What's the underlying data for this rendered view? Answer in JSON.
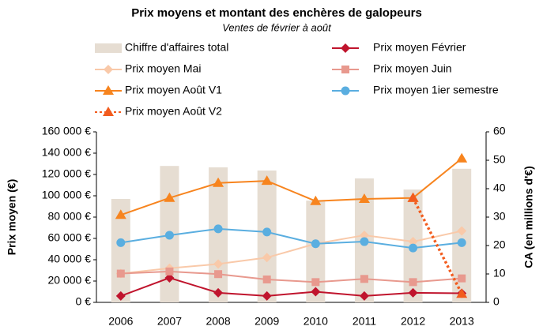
{
  "chart_data": {
    "type": "line",
    "title": "Prix moyens et montant des enchères de galopeurs",
    "subtitle": "Ventes de février à août",
    "y_label": "Prix moyen (€)",
    "y2_label": "CA (en millions d'€)",
    "categories": [
      "2006",
      "2007",
      "2008",
      "2009",
      "2010",
      "2011",
      "2012",
      "2013"
    ],
    "ylim": [
      0,
      160000
    ],
    "yticks": [
      {
        "value": 0,
        "label": "0 €"
      },
      {
        "value": 20000,
        "label": "20 000 €"
      },
      {
        "value": 40000,
        "label": "40 000 €"
      },
      {
        "value": 60000,
        "label": "60 000 €"
      },
      {
        "value": 80000,
        "label": "80 000 €"
      },
      {
        "value": 100000,
        "label": "100 000 €"
      },
      {
        "value": 120000,
        "label": "120 000 €"
      },
      {
        "value": 140000,
        "label": "140 000 €"
      },
      {
        "value": 160000,
        "label": "160 000 €"
      }
    ],
    "y2lim": [
      0,
      60
    ],
    "y2ticks": [
      0,
      10,
      20,
      30,
      40,
      50,
      60
    ],
    "series": [
      {
        "name": "Chiffre d'affaires total",
        "kind": "bar",
        "axis": "y2",
        "color": "#e6ddd2",
        "values": [
          36.4,
          48,
          47.5,
          46.4,
          35.8,
          43.6,
          39.7,
          47
        ]
      },
      {
        "name": "Prix moyen Février",
        "marker": "diamond",
        "color": "#c0142d",
        "values": [
          6000,
          23000,
          9000,
          6000,
          10000,
          6000,
          9000,
          8500
        ]
      },
      {
        "name": "Prix moyen Mai",
        "marker": "diamond",
        "color": "#f9c9a9",
        "values": [
          27000,
          32000,
          36000,
          42000,
          55000,
          63000,
          57000,
          67000
        ]
      },
      {
        "name": "Prix moyen Juin",
        "marker": "square",
        "color": "#e8998e",
        "values": [
          27000,
          29000,
          26500,
          21500,
          19000,
          22000,
          19000,
          22500
        ]
      },
      {
        "name": "Prix moyen Août V1",
        "marker": "triangle",
        "color": "#f7841e",
        "values": [
          82000,
          98000,
          112000,
          114000,
          95000,
          97000,
          98000,
          135000
        ]
      },
      {
        "name": "Prix moyen 1ier semestre",
        "marker": "circle",
        "color": "#5aaee0",
        "values": [
          56000,
          63000,
          69000,
          66000,
          55000,
          57000,
          51000,
          56000
        ]
      },
      {
        "name": "Prix moyen Août V2",
        "marker": "triangle",
        "line_style": "dotted",
        "color": "#f25c1e",
        "values": [
          null,
          null,
          null,
          null,
          null,
          null,
          98000,
          8000
        ]
      }
    ]
  }
}
